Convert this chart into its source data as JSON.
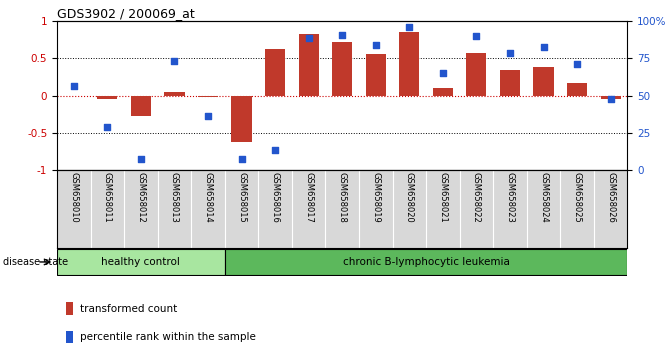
{
  "title": "GDS3902 / 200069_at",
  "samples": [
    "GSM658010",
    "GSM658011",
    "GSM658012",
    "GSM658013",
    "GSM658014",
    "GSM658015",
    "GSM658016",
    "GSM658017",
    "GSM658018",
    "GSM658019",
    "GSM658020",
    "GSM658021",
    "GSM658022",
    "GSM658023",
    "GSM658024",
    "GSM658025",
    "GSM658026"
  ],
  "red_bars": [
    0.0,
    -0.05,
    -0.28,
    0.05,
    -0.02,
    -0.63,
    0.63,
    0.83,
    0.72,
    0.56,
    0.85,
    0.1,
    0.57,
    0.35,
    0.38,
    0.17,
    -0.05
  ],
  "blue_dots": [
    0.13,
    -0.42,
    -0.85,
    0.47,
    -0.28,
    -0.85,
    -0.73,
    0.77,
    0.81,
    0.68,
    0.92,
    0.3,
    0.8,
    0.57,
    0.65,
    0.43,
    -0.05
  ],
  "bar_color": "#C0392B",
  "dot_color": "#2255CC",
  "group1_count": 5,
  "group1_label": "healthy control",
  "group2_label": "chronic B-lymphocytic leukemia",
  "group1_color": "#A8E6A0",
  "group2_color": "#5CB85C",
  "disease_state_label": "disease state",
  "legend_red": "transformed count",
  "legend_blue": "percentile rank within the sample",
  "ylim": [
    -1,
    1
  ],
  "yticks_left": [
    -1,
    -0.5,
    0,
    0.5,
    1
  ],
  "yticks_right": [
    0,
    25,
    50,
    75,
    100
  ],
  "xtick_bg": "#D8D8D8"
}
